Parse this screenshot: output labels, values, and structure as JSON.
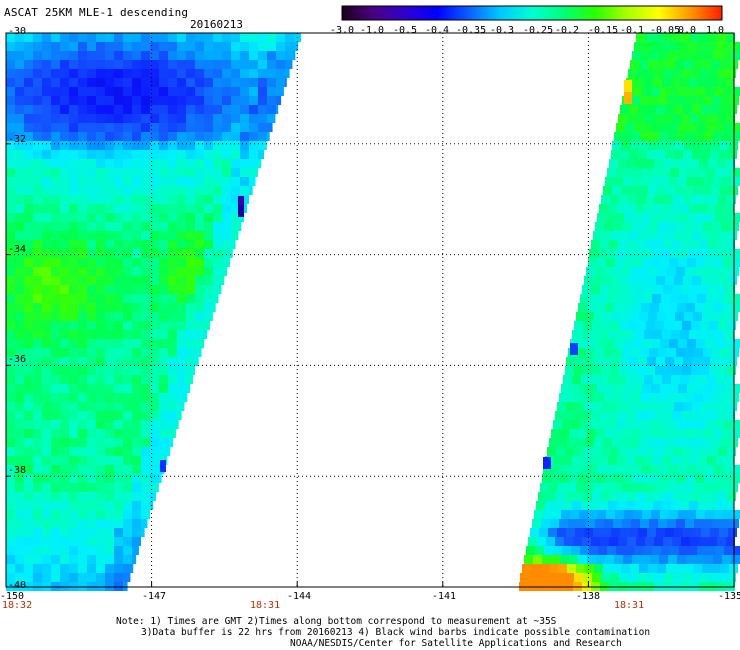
{
  "header": {
    "title": "ASCAT 25KM MLE-1 descending",
    "date": "20160213"
  },
  "colorbar": {
    "tick_labels": [
      "-3.0",
      "-1.0",
      "-0.5",
      "-0.4",
      "-0.35",
      "-0.3",
      "-0.25",
      "-0.2",
      "-0.15",
      "-0.1",
      "-0.05",
      "0.0",
      "1.0"
    ],
    "colors": [
      "#1a001a",
      "#4b0082",
      "#2f00d0",
      "#0000ff",
      "#0a5fff",
      "#00c8ff",
      "#00ffd2",
      "#00ff78",
      "#28ff00",
      "#a8ff00",
      "#ffff00",
      "#ff9600",
      "#ff1e00"
    ]
  },
  "map": {
    "lat_labels": [
      "-30",
      "-32",
      "-34",
      "-36",
      "-38",
      "-40"
    ],
    "lon_labels": [
      "-150",
      "-147",
      "-144",
      "-141",
      "-138",
      "-135"
    ],
    "time_labels": [
      "18:32",
      "18:31",
      "18:31"
    ],
    "lat_range": [
      -40,
      -30
    ],
    "lon_range": [
      -150,
      -135
    ]
  },
  "footer": {
    "note_line1": "Note: 1) Times are GMT 2)Times along bottom correspond to measurement at ~35S",
    "note_line2": "3)Data buffer is 22 hrs from 20160213 4) Black wind barbs indicate possible contamination",
    "note_line3": "NOAA/NESDIS/Center for Satellite Applications and Research"
  }
}
